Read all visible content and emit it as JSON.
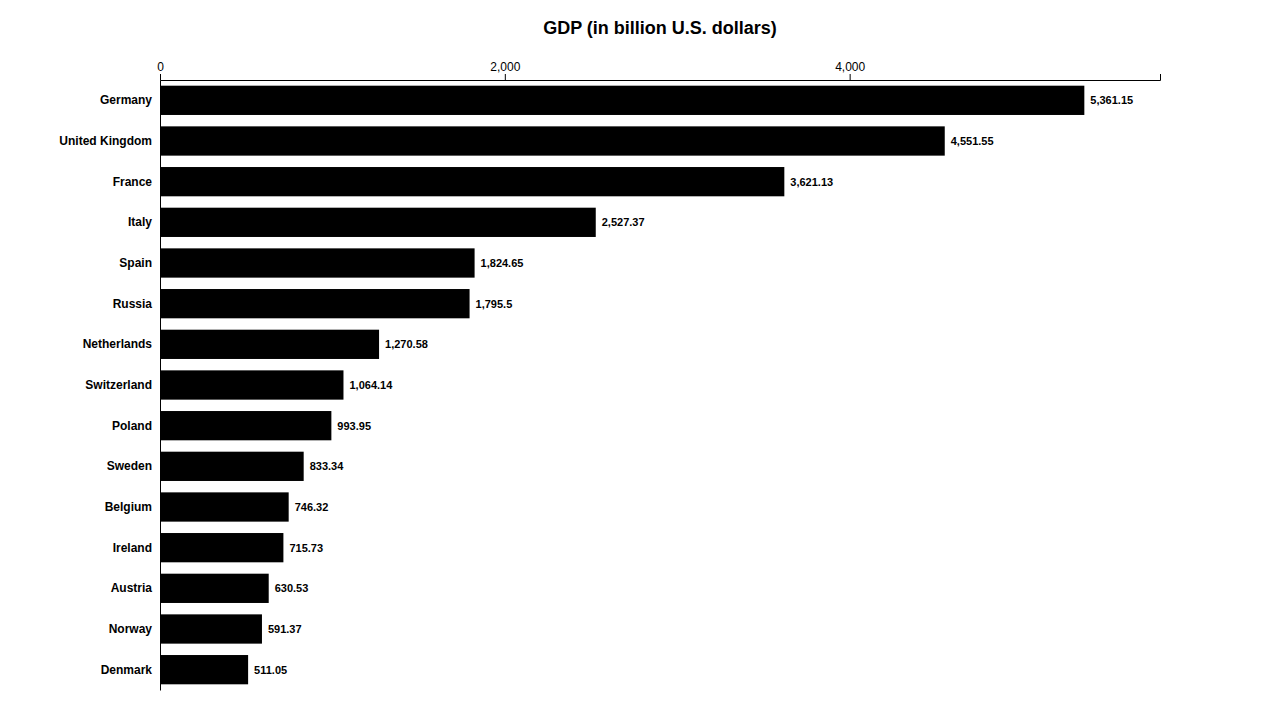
{
  "chart_data": {
    "type": "bar",
    "title": "GDP (in billion U.S. dollars)",
    "orientation": "horizontal",
    "categories": [
      "Germany",
      "United Kingdom",
      "France",
      "Italy",
      "Spain",
      "Russia",
      "Netherlands",
      "Switzerland",
      "Poland",
      "Sweden",
      "Belgium",
      "Ireland",
      "Austria",
      "Norway",
      "Denmark"
    ],
    "values": [
      5361.15,
      4551.55,
      3621.13,
      2527.37,
      1824.65,
      1795.5,
      1270.58,
      1064.14,
      993.95,
      833.34,
      746.32,
      715.73,
      630.53,
      591.37,
      511.05
    ],
    "value_labels": [
      "5,361.15",
      "4,551.55",
      "3,621.13",
      "2,527.37",
      "1,824.65",
      "1,795.5",
      "1,270.58",
      "1,064.14",
      "993.95",
      "833.34",
      "746.32",
      "715.73",
      "630.53",
      "591.37",
      "511.05"
    ],
    "color": "#000000",
    "xlim": [
      0,
      5800
    ],
    "xticks": [
      0,
      {
        "value": 2000,
        "label": "2,000"
      },
      {
        "value": 4000,
        "label": "4,000"
      }
    ],
    "data_labels": true,
    "grid": false
  }
}
